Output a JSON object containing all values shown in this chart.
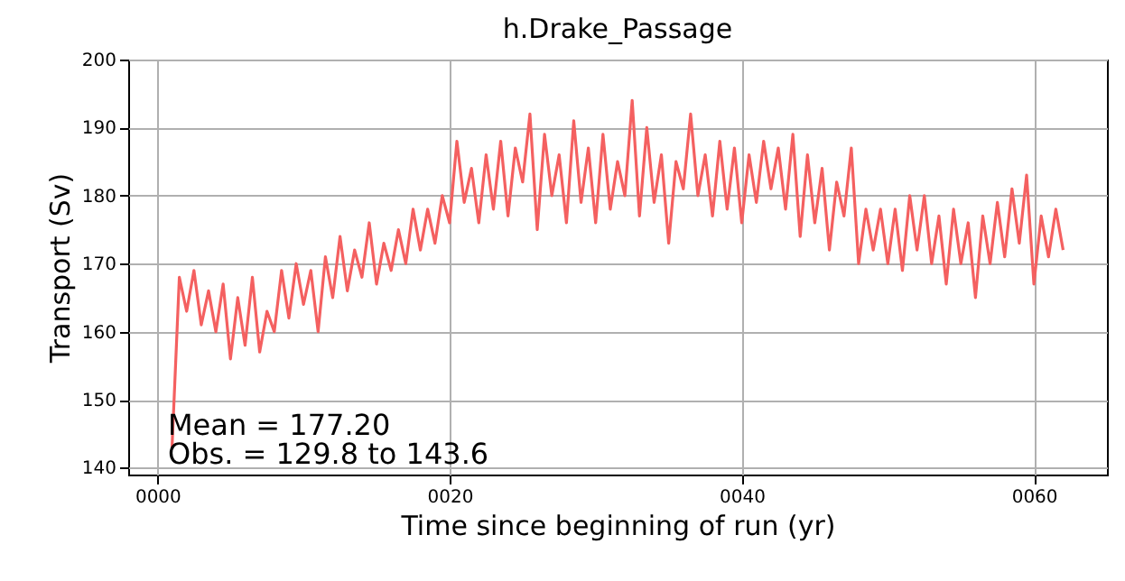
{
  "chart_data": {
    "type": "line",
    "title": "h.Drake_Passage",
    "xlabel": "Time since beginning of run (yr)",
    "ylabel": "Transport (Sv)",
    "annotations": [
      "Mean = 177.20",
      "Obs. = 129.8 to 143.6"
    ],
    "xlim": [
      -2,
      65
    ],
    "xticks": [
      {
        "value": 0,
        "label": "0000"
      },
      {
        "value": 20,
        "label": "0020"
      },
      {
        "value": 40,
        "label": "0040"
      },
      {
        "value": 60,
        "label": "0060"
      }
    ],
    "ylim": [
      139,
      200
    ],
    "yticks": [
      140,
      150,
      160,
      170,
      180,
      190,
      200
    ],
    "grid": true,
    "line_style": "solid",
    "series": [
      {
        "color": "#f46060",
        "x": [
          1.0,
          1.5,
          2.0,
          2.5,
          3.0,
          3.5,
          4.0,
          4.5,
          5.0,
          5.5,
          6.0,
          6.5,
          7.0,
          7.5,
          8.0,
          8.5,
          9.0,
          9.5,
          10.0,
          10.5,
          11.0,
          11.5,
          12.0,
          12.5,
          13.0,
          13.5,
          14.0,
          14.5,
          15.0,
          15.5,
          16.0,
          16.5,
          17.0,
          17.5,
          18.0,
          18.5,
          19.0,
          19.5,
          20.0,
          20.5,
          21.0,
          21.5,
          22.0,
          22.5,
          23.0,
          23.5,
          24.0,
          24.5,
          25.0,
          25.5,
          26.0,
          26.5,
          27.0,
          27.5,
          28.0,
          28.5,
          29.0,
          29.5,
          30.0,
          30.5,
          31.0,
          31.5,
          32.0,
          32.5,
          33.0,
          33.5,
          34.0,
          34.5,
          35.0,
          35.5,
          36.0,
          36.5,
          37.0,
          37.5,
          38.0,
          38.5,
          39.0,
          39.5,
          40.0,
          40.5,
          41.0,
          41.5,
          42.0,
          42.5,
          43.0,
          43.5,
          44.0,
          44.5,
          45.0,
          45.5,
          46.0,
          46.5,
          47.0,
          47.5,
          48.0,
          48.5,
          49.0,
          49.5,
          50.0,
          50.5,
          51.0,
          51.5,
          52.0,
          52.5,
          53.0,
          53.5,
          54.0,
          54.5,
          55.0,
          55.5,
          56.0,
          56.5,
          57.0,
          57.5,
          58.0,
          58.5,
          59.0,
          59.5,
          60.0,
          60.5,
          61.0,
          61.5,
          62.0
        ],
        "values": [
          143,
          168,
          163,
          169,
          161,
          166,
          160,
          167,
          156,
          165,
          158,
          168,
          157,
          163,
          160,
          169,
          162,
          170,
          164,
          169,
          160,
          171,
          165,
          174,
          166,
          172,
          168,
          176,
          167,
          173,
          169,
          175,
          170,
          178,
          172,
          178,
          173,
          180,
          176,
          188,
          179,
          184,
          176,
          186,
          178,
          188,
          177,
          187,
          182,
          192,
          175,
          189,
          180,
          186,
          176,
          191,
          179,
          187,
          176,
          189,
          178,
          185,
          180,
          194,
          177,
          190,
          179,
          186,
          173,
          185,
          181,
          192,
          180,
          186,
          177,
          188,
          178,
          187,
          176,
          186,
          179,
          188,
          181,
          187,
          178,
          189,
          174,
          186,
          176,
          184,
          172,
          182,
          177,
          187,
          170,
          178,
          172,
          178,
          170,
          178,
          169,
          180,
          172,
          180,
          170,
          177,
          167,
          178,
          170,
          176,
          165,
          177,
          170,
          179,
          171,
          181,
          173,
          183,
          167,
          177,
          171,
          178,
          172
        ]
      }
    ]
  }
}
